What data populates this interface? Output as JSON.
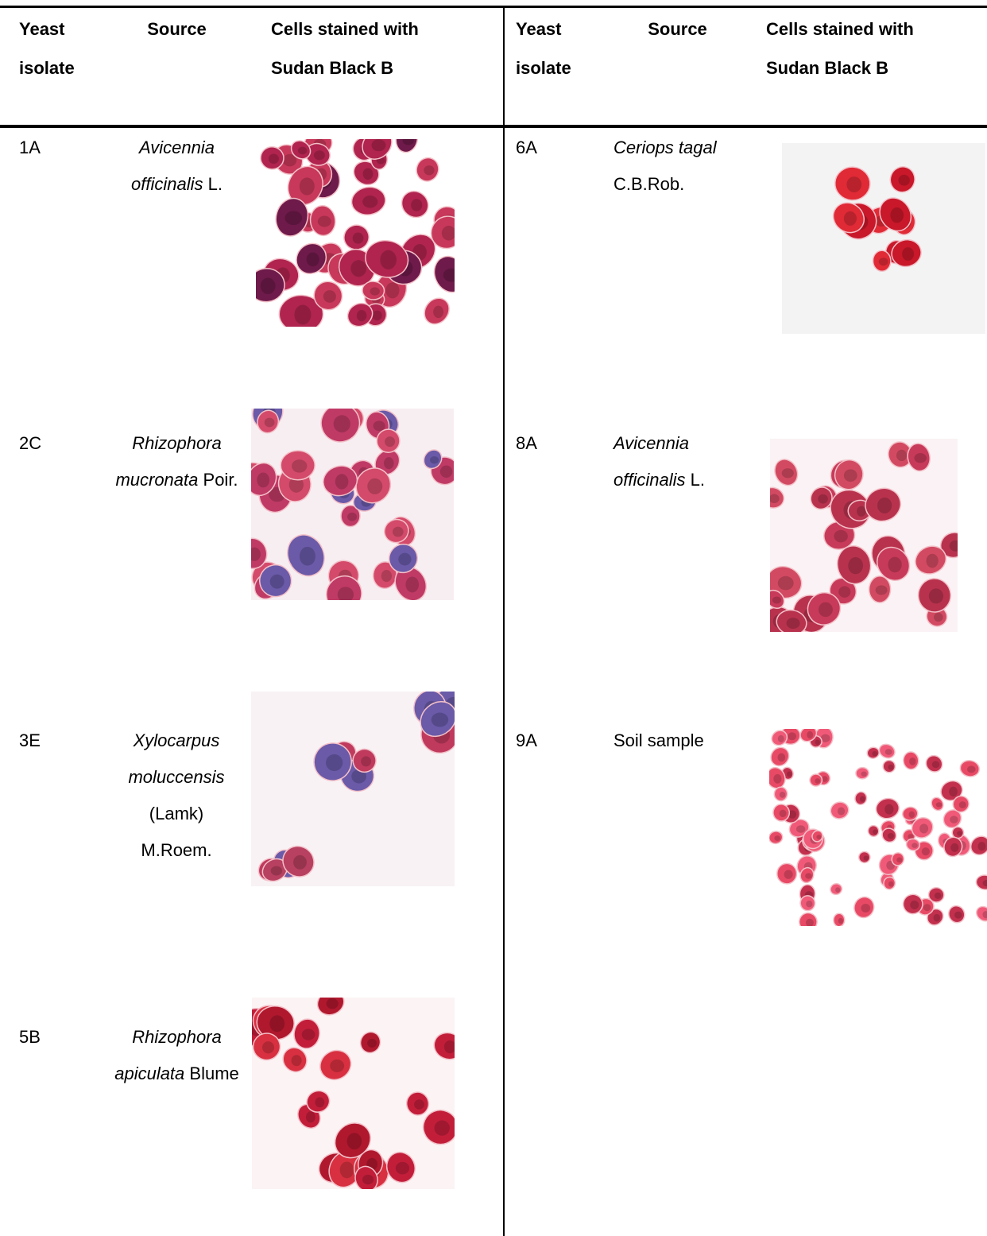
{
  "header": {
    "isolate": "Yeast isolate",
    "source": "Source",
    "cells": "Cells stained with Sudan Black B"
  },
  "left_rows": [
    {
      "isolate": "1A",
      "source": {
        "species": "Avicennia officinalis",
        "authority": "L."
      }
    },
    {
      "isolate": "2C",
      "source": {
        "species": "Rhizophora mucronata",
        "authority": "Poir."
      }
    },
    {
      "isolate": "3E",
      "source": {
        "species": "Xylocarpus moluccensis",
        "authority": "(Lamk) M.Roem."
      }
    },
    {
      "isolate": "5B",
      "source": {
        "species": "Rhizophora apiculata",
        "authority": "Blume"
      }
    }
  ],
  "right_rows": [
    {
      "isolate": "6A",
      "source": {
        "species": "Ceriops tagal",
        "authority": "C.B.Rob."
      }
    },
    {
      "isolate": "8A",
      "source": {
        "species": "Avicennia officinalis",
        "authority": "L."
      }
    },
    {
      "isolate": "9A",
      "source": {
        "text": "Soil sample"
      }
    }
  ]
}
